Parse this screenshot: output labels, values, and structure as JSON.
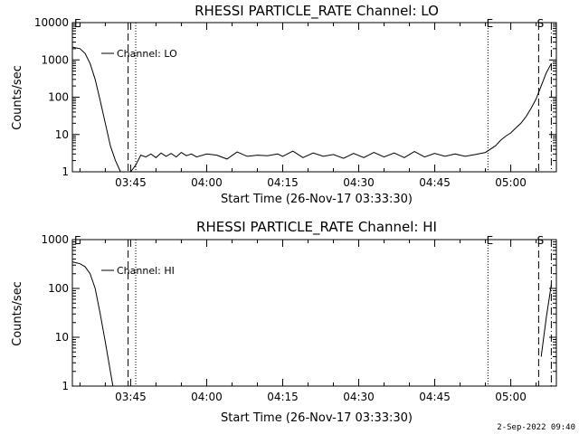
{
  "footer": {
    "timestamp": "2-Sep-2022 09:40"
  },
  "chart_data": [
    {
      "type": "line",
      "title": "RHESSI PARTICLE_RATE Channel: LO",
      "xlabel": "Start Time (26-Nov-17 03:33:30)",
      "ylabel": "Counts/sec",
      "yscale": "log",
      "ylim": [
        1,
        10000
      ],
      "xlim": [
        "03:33:30",
        "05:09:00"
      ],
      "xticks": [
        "03:45",
        "04:00",
        "04:15",
        "04:30",
        "04:45",
        "05:00"
      ],
      "yticks": [
        "1",
        "10",
        "100",
        "1000",
        "10000"
      ],
      "legend": "top-left",
      "series": [
        {
          "name": "Channel: LO",
          "points": [
            [
              "03:33:30",
              2200
            ],
            [
              "03:35:00",
              2000
            ],
            [
              "03:36:00",
              1500
            ],
            [
              "03:37:00",
              800
            ],
            [
              "03:38:00",
              300
            ],
            [
              "03:39:00",
              80
            ],
            [
              "03:40:00",
              20
            ],
            [
              "03:41:00",
              5
            ],
            [
              "03:42:00",
              2
            ],
            [
              "03:43:00",
              1
            ],
            [
              "03:44:00",
              1
            ],
            [
              "03:45:00",
              1
            ],
            [
              "03:46:00",
              1.5
            ],
            [
              "03:47:00",
              2.8
            ],
            [
              "03:48:00",
              2.5
            ],
            [
              "03:49:00",
              3
            ],
            [
              "03:50:00",
              2.4
            ],
            [
              "03:51:00",
              3.2
            ],
            [
              "03:52:00",
              2.6
            ],
            [
              "03:53:00",
              3.1
            ],
            [
              "03:54:00",
              2.5
            ],
            [
              "03:55:00",
              3.3
            ],
            [
              "03:56:00",
              2.7
            ],
            [
              "03:57:00",
              3
            ],
            [
              "03:58:00",
              2.5
            ],
            [
              "04:00:00",
              3
            ],
            [
              "04:02:00",
              2.8
            ],
            [
              "04:04:00",
              2.2
            ],
            [
              "04:06:00",
              3.4
            ],
            [
              "04:08:00",
              2.6
            ],
            [
              "04:10:00",
              2.8
            ],
            [
              "04:12:00",
              2.7
            ],
            [
              "04:14:00",
              3
            ],
            [
              "04:15:00",
              2.6
            ],
            [
              "04:17:00",
              3.6
            ],
            [
              "04:19:00",
              2.4
            ],
            [
              "04:21:00",
              3.2
            ],
            [
              "04:23:00",
              2.6
            ],
            [
              "04:25:00",
              2.9
            ],
            [
              "04:27:00",
              2.3
            ],
            [
              "04:29:00",
              3.1
            ],
            [
              "04:31:00",
              2.4
            ],
            [
              "04:33:00",
              3.3
            ],
            [
              "04:35:00",
              2.5
            ],
            [
              "04:37:00",
              3.2
            ],
            [
              "04:39:00",
              2.4
            ],
            [
              "04:41:00",
              3.5
            ],
            [
              "04:43:00",
              2.5
            ],
            [
              "04:45:00",
              3.1
            ],
            [
              "04:47:00",
              2.6
            ],
            [
              "04:49:00",
              3
            ],
            [
              "04:51:00",
              2.6
            ],
            [
              "04:53:00",
              2.9
            ],
            [
              "04:55:00",
              3.3
            ],
            [
              "04:57:00",
              5
            ],
            [
              "04:58:00",
              7
            ],
            [
              "04:59:00",
              9
            ],
            [
              "05:00:00",
              11
            ],
            [
              "05:01:00",
              15
            ],
            [
              "05:02:00",
              20
            ],
            [
              "05:03:00",
              30
            ],
            [
              "05:04:00",
              50
            ],
            [
              "05:05:00",
              90
            ],
            [
              "05:06:00",
              200
            ],
            [
              "05:07:00",
              450
            ],
            [
              "05:08:00",
              800
            ]
          ]
        }
      ],
      "markers": [
        {
          "label": "E",
          "time": "03:33:30",
          "style": "none"
        },
        {
          "label": "",
          "time": "03:44:30",
          "style": "dashed"
        },
        {
          "label": "",
          "time": "03:46:00",
          "style": "dotted"
        },
        {
          "label": "E",
          "time": "04:55:30",
          "style": "dotted"
        },
        {
          "label": "S",
          "time": "05:05:30",
          "style": "dashed"
        },
        {
          "label": "",
          "time": "05:08:00",
          "style": "dashdot"
        }
      ]
    },
    {
      "type": "line",
      "title": "RHESSI PARTICLE_RATE Channel: HI",
      "xlabel": "Start Time (26-Nov-17 03:33:30)",
      "ylabel": "Counts/sec",
      "yscale": "log",
      "ylim": [
        1,
        1000
      ],
      "xlim": [
        "03:33:30",
        "05:09:00"
      ],
      "xticks": [
        "03:45",
        "04:00",
        "04:15",
        "04:30",
        "04:45",
        "05:00"
      ],
      "yticks": [
        "1",
        "10",
        "100",
        "1000"
      ],
      "legend": "top-left",
      "series": [
        {
          "name": "Channel: HI",
          "points": [
            [
              "03:33:30",
              350
            ],
            [
              "03:35:00",
              320
            ],
            [
              "03:36:00",
              280
            ],
            [
              "03:37:00",
              200
            ],
            [
              "03:38:00",
              100
            ],
            [
              "03:39:00",
              30
            ],
            [
              "03:40:00",
              8
            ],
            [
              "03:41:00",
              2
            ],
            [
              "03:41:30",
              1
            ]
          ]
        },
        {
          "name": "",
          "points": [
            [
              "05:06:00",
              4
            ],
            [
              "05:07:00",
              25
            ],
            [
              "05:08:00",
              120
            ]
          ]
        }
      ],
      "markers": [
        {
          "label": "E",
          "time": "03:33:30",
          "style": "none"
        },
        {
          "label": "",
          "time": "03:44:30",
          "style": "dashed"
        },
        {
          "label": "",
          "time": "03:46:00",
          "style": "dotted"
        },
        {
          "label": "E",
          "time": "04:55:30",
          "style": "dotted"
        },
        {
          "label": "S",
          "time": "05:05:30",
          "style": "dashed"
        },
        {
          "label": "",
          "time": "05:08:00",
          "style": "dashdot"
        }
      ]
    }
  ]
}
